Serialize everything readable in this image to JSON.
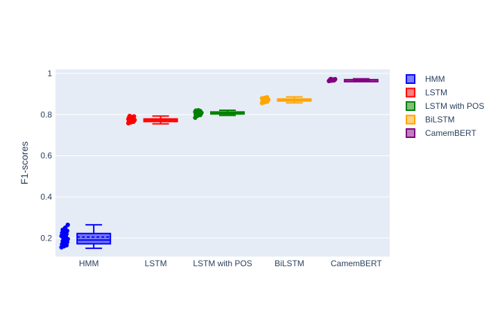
{
  "chart_data": {
    "type": "box",
    "ylabel": "F1-scores",
    "xlabel": "",
    "ylim": [
      0.11,
      1.02
    ],
    "yticks": [
      0.2,
      0.4,
      0.6,
      0.8,
      1
    ],
    "ytick_labels": [
      "0.2",
      "0.4",
      "0.6",
      "0.8",
      "1"
    ],
    "categories": [
      "HMM",
      "LSTM",
      "LSTM with POS",
      "BiLSTM",
      "CamemBERT"
    ],
    "grid": true,
    "legend_position": "right",
    "box_mean": true,
    "series": [
      {
        "name": "HMM",
        "color": "#0000ff",
        "min": 0.15,
        "q1": 0.172,
        "median": 0.19,
        "mean": 0.205,
        "q3": 0.222,
        "max": 0.264,
        "points": [
          0.155,
          0.16,
          0.165,
          0.17,
          0.175,
          0.18,
          0.185,
          0.19,
          0.195,
          0.2,
          0.205,
          0.21,
          0.215,
          0.22,
          0.225,
          0.23,
          0.235,
          0.24,
          0.25,
          0.264
        ]
      },
      {
        "name": "LSTM",
        "color": "#ff0000",
        "min": 0.755,
        "q1": 0.766,
        "median": 0.773,
        "mean": 0.774,
        "q3": 0.779,
        "max": 0.793,
        "points": [
          0.758,
          0.762,
          0.765,
          0.767,
          0.769,
          0.77,
          0.772,
          0.773,
          0.774,
          0.775,
          0.777,
          0.778,
          0.78,
          0.782,
          0.785,
          0.788,
          0.791,
          0.793
        ]
      },
      {
        "name": "LSTM with POS",
        "color": "#008000",
        "min": 0.796,
        "q1": 0.803,
        "median": 0.808,
        "mean": 0.809,
        "q3": 0.813,
        "max": 0.821,
        "points": [
          0.785,
          0.795,
          0.798,
          0.8,
          0.802,
          0.804,
          0.806,
          0.808,
          0.809,
          0.81,
          0.812,
          0.813,
          0.815,
          0.817,
          0.819,
          0.821
        ]
      },
      {
        "name": "BiLSTM",
        "color": "#ffa500",
        "min": 0.857,
        "q1": 0.866,
        "median": 0.871,
        "mean": 0.872,
        "q3": 0.876,
        "max": 0.886,
        "points": [
          0.856,
          0.86,
          0.863,
          0.865,
          0.867,
          0.869,
          0.871,
          0.872,
          0.873,
          0.875,
          0.877,
          0.879,
          0.881,
          0.884
        ]
      },
      {
        "name": "CamemBERT",
        "color": "#800080",
        "min": 0.962,
        "q1": 0.966,
        "median": 0.968,
        "mean": 0.968,
        "q3": 0.97,
        "max": 0.974,
        "points": [
          0.963,
          0.965,
          0.966,
          0.967,
          0.968,
          0.969,
          0.97,
          0.971,
          0.972,
          0.973
        ]
      }
    ]
  }
}
